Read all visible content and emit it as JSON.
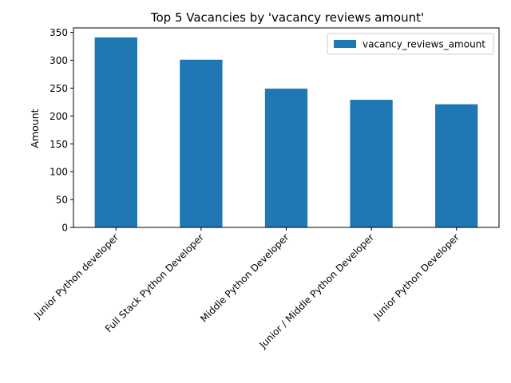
{
  "chart_data": {
    "type": "bar",
    "title": "Top 5 Vacancies by 'vacancy reviews amount'",
    "xlabel": "",
    "ylabel": "Amount",
    "categories": [
      "Junior Python developer",
      "Full Stack Python Developer",
      "Middle Python Developer",
      "Junior / Middle Python Developer",
      "Junior Python Developer"
    ],
    "series": [
      {
        "name": "vacancy_reviews_amount",
        "values": [
          341,
          301,
          249,
          229,
          221
        ],
        "color": "#1f77b4"
      }
    ],
    "ylim": [
      0,
      358
    ],
    "yticks": [
      0,
      50,
      100,
      150,
      200,
      250,
      300,
      350
    ],
    "grid": false,
    "legend_position": "top-right"
  }
}
